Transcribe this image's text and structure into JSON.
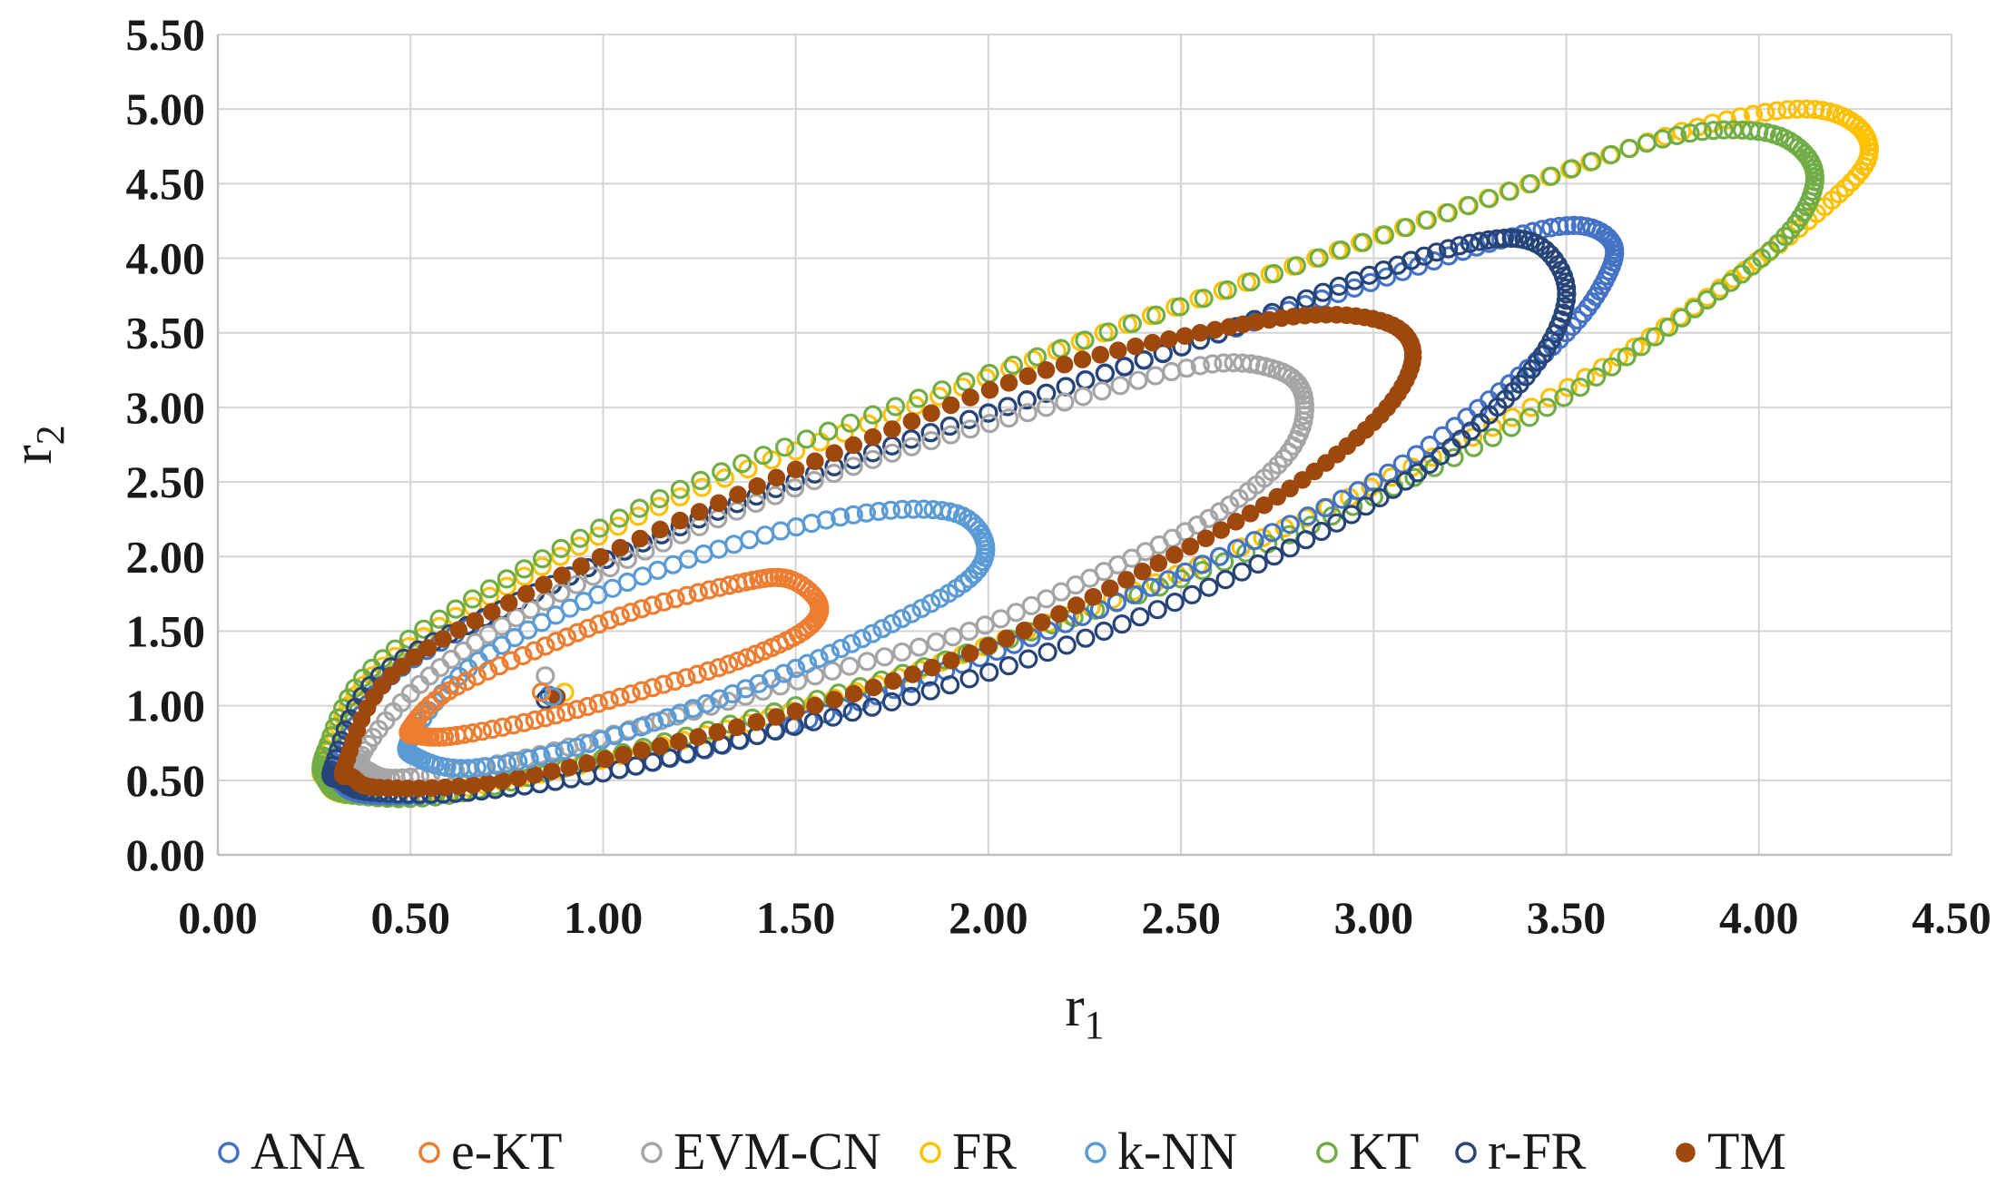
{
  "chart_data": {
    "type": "scatter",
    "title": "",
    "xlabel": "r",
    "xlabel_sub": "1",
    "ylabel": "r",
    "ylabel_sub": "2",
    "xlim": [
      0,
      4.5
    ],
    "ylim": [
      0,
      5.5
    ],
    "x_ticks": [
      "0.00",
      "0.50",
      "1.00",
      "1.50",
      "2.00",
      "2.50",
      "3.00",
      "3.50",
      "4.00",
      "4.50"
    ],
    "y_ticks": [
      "0.00",
      "0.50",
      "1.00",
      "1.50",
      "2.00",
      "2.50",
      "3.00",
      "3.50",
      "4.00",
      "4.50",
      "5.00",
      "5.50"
    ],
    "grid": true,
    "legend_position": "bottom",
    "series": [
      {
        "name": "ANA",
        "color": "#4472C4",
        "marker": "open-circle",
        "x": [
          0.86,
          0.32,
          0.45,
          0.78,
          1.2,
          1.65,
          2.1,
          2.55,
          2.95,
          3.3,
          3.52,
          3.62,
          3.6,
          3.5,
          3.3,
          3.0,
          2.6,
          2.2,
          1.8,
          1.4,
          1.0,
          0.65,
          0.4,
          0.32
        ],
        "y": [
          1.07,
          0.65,
          1.2,
          1.7,
          2.2,
          2.65,
          3.05,
          3.45,
          3.8,
          4.1,
          4.22,
          4.1,
          3.85,
          3.5,
          3.05,
          2.5,
          2.0,
          1.55,
          1.15,
          0.8,
          0.55,
          0.42,
          0.4,
          0.48
        ]
      },
      {
        "name": "e-KT",
        "color": "#ED7D31",
        "marker": "open-circle",
        "x": [
          0.84,
          0.5,
          0.6,
          0.85,
          1.1,
          1.35,
          1.48,
          1.56,
          1.52,
          1.35,
          1.1,
          0.85,
          0.62,
          0.52
        ],
        "y": [
          1.09,
          0.85,
          1.1,
          1.4,
          1.65,
          1.82,
          1.85,
          1.68,
          1.5,
          1.3,
          1.1,
          0.92,
          0.8,
          0.8
        ]
      },
      {
        "name": "EVM-CN",
        "color": "#A5A5A5",
        "marker": "open-circle",
        "x": [
          0.85,
          0.38,
          0.55,
          0.85,
          1.25,
          1.7,
          2.15,
          2.55,
          2.75,
          2.82,
          2.78,
          2.6,
          2.3,
          1.95,
          1.55,
          1.15,
          0.8,
          0.5,
          0.4
        ],
        "y": [
          1.2,
          0.7,
          1.2,
          1.7,
          2.2,
          2.65,
          3.0,
          3.28,
          3.25,
          3.05,
          2.7,
          2.3,
          1.9,
          1.5,
          1.2,
          0.9,
          0.65,
          0.52,
          0.55
        ]
      },
      {
        "name": "FR",
        "color": "#FFC000",
        "marker": "open-circle",
        "x": [
          0.9,
          0.28,
          0.4,
          0.75,
          1.2,
          1.75,
          2.3,
          2.85,
          3.35,
          3.8,
          4.1,
          4.25,
          4.28,
          4.15,
          3.9,
          3.55,
          3.1,
          2.6,
          2.1,
          1.6,
          1.1,
          0.65,
          0.35,
          0.28
        ],
        "y": [
          1.09,
          0.65,
          1.2,
          1.8,
          2.4,
          2.95,
          3.5,
          4.0,
          4.45,
          4.85,
          5.0,
          4.9,
          4.65,
          4.3,
          3.8,
          3.2,
          2.6,
          2.0,
          1.5,
          1.05,
          0.7,
          0.45,
          0.4,
          0.5
        ]
      },
      {
        "name": "k-NN",
        "color": "#5B9BD5",
        "marker": "open-circle",
        "x": [
          0.87,
          0.5,
          0.65,
          0.95,
          1.3,
          1.65,
          1.9,
          1.99,
          1.95,
          1.75,
          1.5,
          1.2,
          0.9,
          0.65,
          0.52
        ],
        "y": [
          1.06,
          0.78,
          1.25,
          1.7,
          2.05,
          2.28,
          2.3,
          2.1,
          1.85,
          1.55,
          1.25,
          0.95,
          0.7,
          0.58,
          0.65
        ]
      },
      {
        "name": "KT",
        "color": "#70AD47",
        "marker": "open-circle",
        "x": [
          0.87,
          0.28,
          0.4,
          0.75,
          1.2,
          1.7,
          2.25,
          2.8,
          3.3,
          3.75,
          4.0,
          4.12,
          4.14,
          4.05,
          3.8,
          3.45,
          3.0,
          2.5,
          2.0,
          1.5,
          1.0,
          0.6,
          0.35,
          0.28
        ],
        "y": [
          1.05,
          0.7,
          1.25,
          1.85,
          2.45,
          2.95,
          3.45,
          3.95,
          4.4,
          4.8,
          4.85,
          4.7,
          4.45,
          4.1,
          3.6,
          3.0,
          2.4,
          1.85,
          1.4,
          1.0,
          0.65,
          0.4,
          0.4,
          0.5
        ]
      },
      {
        "name": "r-FR",
        "color": "#264478",
        "marker": "open-circle",
        "x": [
          0.85,
          0.3,
          0.42,
          0.78,
          1.2,
          1.65,
          2.1,
          2.55,
          2.95,
          3.25,
          3.42,
          3.5,
          3.45,
          3.3,
          3.05,
          2.7,
          2.3,
          1.85,
          1.4,
          1.0,
          0.65,
          0.4,
          0.32
        ],
        "y": [
          1.04,
          0.6,
          1.2,
          1.7,
          2.2,
          2.65,
          3.05,
          3.45,
          3.85,
          4.1,
          4.1,
          3.8,
          3.4,
          2.95,
          2.45,
          1.95,
          1.5,
          1.1,
          0.8,
          0.55,
          0.42,
          0.42,
          0.5
        ]
      },
      {
        "name": "TM",
        "color": "#9E480E",
        "marker": "filled-circle",
        "x": [
          0.88,
          0.33,
          0.45,
          0.8,
          1.25,
          1.7,
          2.15,
          2.55,
          2.85,
          3.05,
          3.1,
          3.0,
          2.75,
          2.4,
          2.0,
          1.55,
          1.1,
          0.7,
          0.42,
          0.35
        ],
        "y": [
          1.06,
          0.6,
          1.2,
          1.75,
          2.3,
          2.8,
          3.25,
          3.5,
          3.62,
          3.55,
          3.3,
          2.9,
          2.4,
          1.9,
          1.4,
          1.0,
          0.7,
          0.48,
          0.45,
          0.52
        ]
      }
    ]
  }
}
